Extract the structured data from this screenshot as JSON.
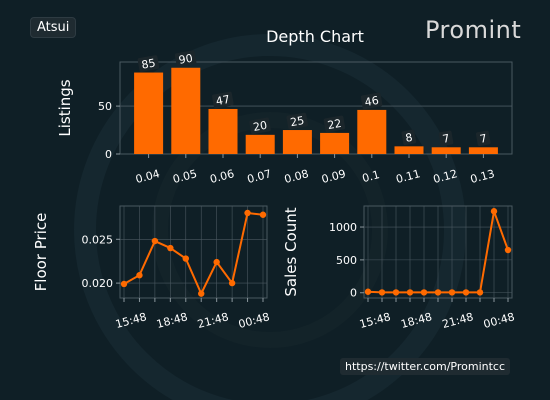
{
  "header": {
    "collection": "Atsui",
    "logo_text": "Promint"
  },
  "footer": {
    "link": "https://twitter.com/Promintcc"
  },
  "colors": {
    "background": "#0f1f26",
    "accent": "#ff6a00",
    "grid": "#4a5860",
    "axis": "#8a969c",
    "text": "#ffffff"
  },
  "chart_data": [
    {
      "type": "bar",
      "title": "Depth Chart",
      "ylabel": "Listings",
      "xlabel": "",
      "categories": [
        "0.04",
        "0.05",
        "0.06",
        "0.07",
        "0.08",
        "0.09",
        "0.1",
        "0.11",
        "0.12",
        "0.13"
      ],
      "values": [
        85,
        90,
        47,
        20,
        25,
        22,
        46,
        8,
        7,
        7
      ],
      "yticks": [
        0,
        50
      ],
      "ylim": [
        0,
        96
      ],
      "grid": true
    },
    {
      "type": "line",
      "ylabel": "Floor Price",
      "xticklabels": [
        "15:48",
        "18:48",
        "21:48",
        "00:48"
      ],
      "values": [
        0.0199,
        0.0209,
        0.0248,
        0.024,
        0.0228,
        0.0188,
        0.0224,
        0.02,
        0.028,
        0.0278
      ],
      "yticks": [
        0.02,
        0.025
      ],
      "ytick_labels": [
        "0.020",
        "0.025"
      ],
      "ylim": [
        0.0183,
        0.0288
      ],
      "grid": true
    },
    {
      "type": "line",
      "ylabel": "Sales Count",
      "xticklabels": [
        "15:48",
        "18:48",
        "21:48",
        "00:48"
      ],
      "values": [
        15,
        5,
        5,
        5,
        5,
        5,
        5,
        5,
        5,
        1240,
        650
      ],
      "yticks": [
        0,
        500,
        1000
      ],
      "ylim": [
        -80,
        1320
      ],
      "grid": true
    }
  ]
}
